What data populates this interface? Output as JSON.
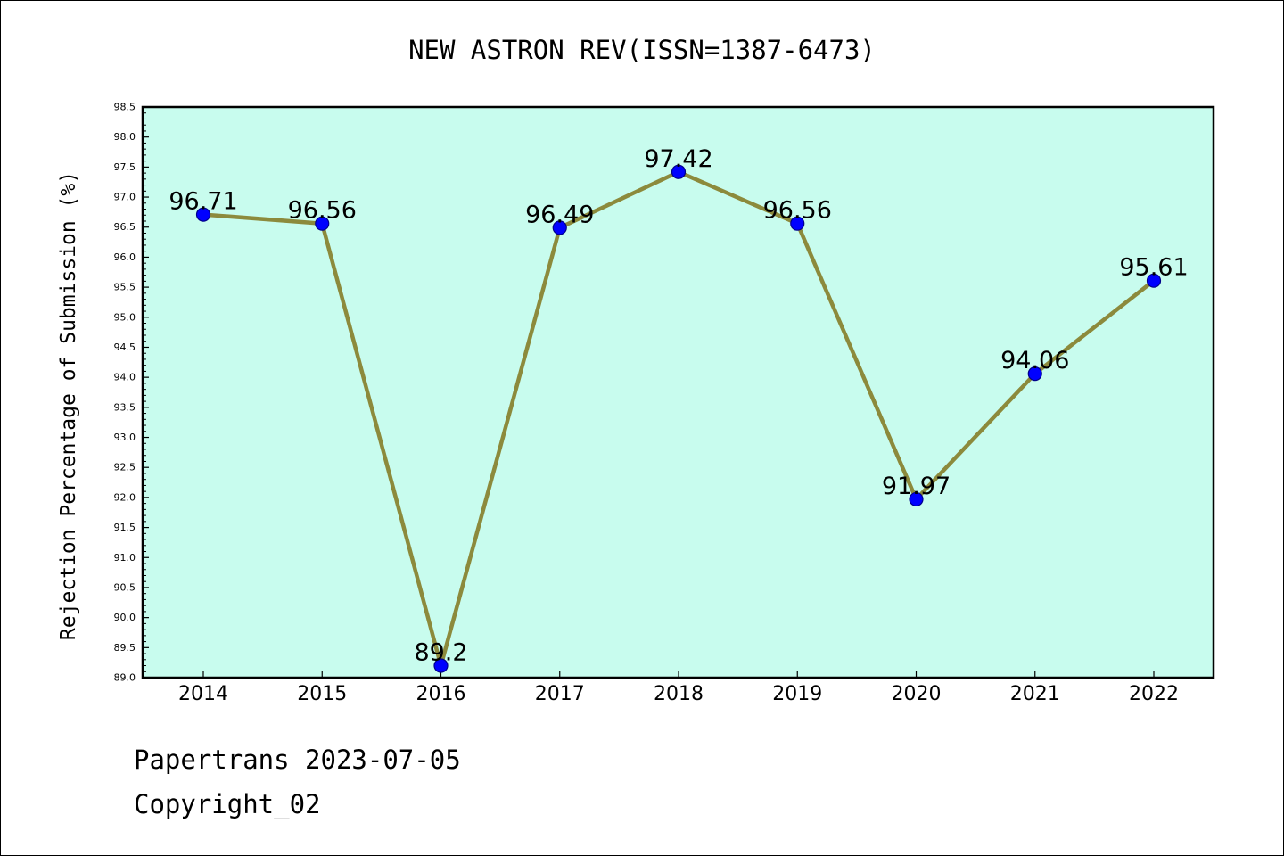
{
  "footer": {
    "line1": "Papertrans 2023-07-05",
    "line2": "Copyright_02"
  },
  "colors": {
    "plot_background": "#c8fcee",
    "line": "#8c8a3c",
    "marker": "#0000ff",
    "marker_edge": "#00008b",
    "axis": "#000000"
  },
  "chart_data": {
    "type": "line",
    "title": "NEW ASTRON REV(ISSN=1387-6473)",
    "xlabel": "",
    "ylabel": "Rejection Percentage of Submission (%)",
    "categories": [
      "2014",
      "2015",
      "2016",
      "2017",
      "2018",
      "2019",
      "2020",
      "2021",
      "2022"
    ],
    "series": [
      {
        "values": [
          96.71,
          96.56,
          89.2,
          96.49,
          97.42,
          96.56,
          91.97,
          94.06,
          95.61
        ],
        "labels": [
          "96.71",
          "96.56",
          "89.2",
          "96.49",
          "97.42",
          "96.56",
          "91.97",
          "94.06",
          "95.61"
        ]
      }
    ],
    "ylim": [
      89.0,
      98.5
    ],
    "ytick_labels": [
      "89.0",
      "89.5",
      "90.0",
      "90.5",
      "91.0",
      "91.5",
      "92.0",
      "92.5",
      "93.0",
      "93.5",
      "94.0",
      "94.5",
      "95.0",
      "95.5",
      "96.0",
      "96.5",
      "97.0",
      "97.5",
      "98.0",
      "98.5"
    ],
    "grid": false,
    "legend": "none"
  }
}
